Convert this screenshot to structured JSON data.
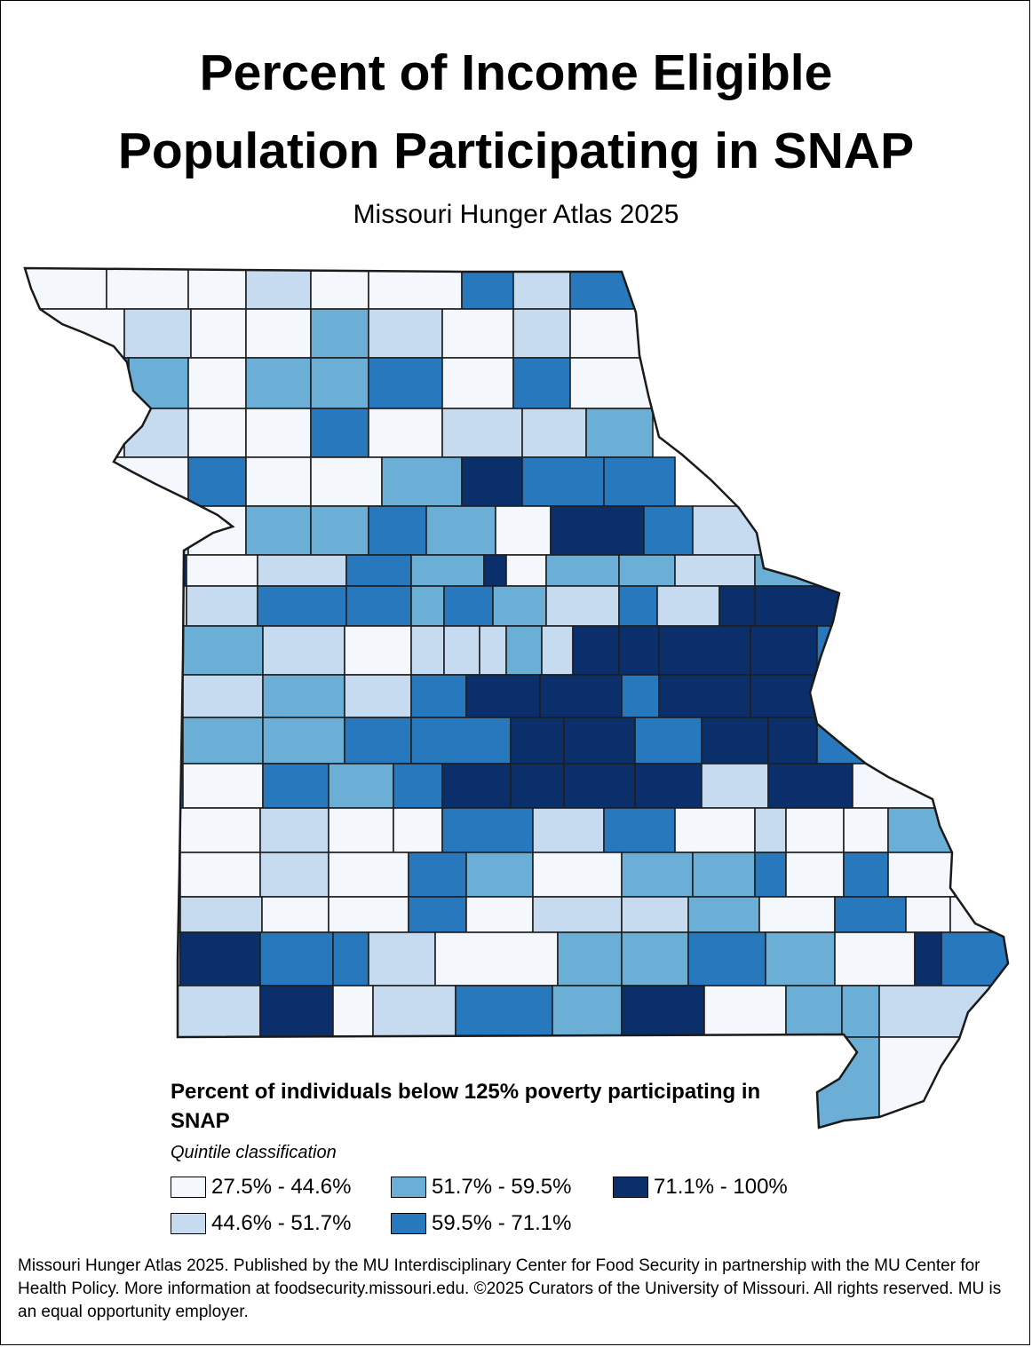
{
  "title_line1": "Percent of Income Eligible",
  "title_line2": "Population Participating in SNAP",
  "subtitle": "Missouri Hunger Atlas 2025",
  "legend": {
    "title": "Percent of individuals below 125% poverty participating in SNAP",
    "subtitle": "Quintile classification",
    "classes": [
      {
        "label": "27.5% - 44.6%",
        "color": "#f4f8fd"
      },
      {
        "label": "44.6% - 51.7%",
        "color": "#c6dbef"
      },
      {
        "label": "51.7% - 59.5%",
        "color": "#6baed6"
      },
      {
        "label": "59.5% - 71.1%",
        "color": "#2878bd"
      },
      {
        "label": "71.1% - 100%",
        "color": "#0b2f6b"
      }
    ]
  },
  "footer": "Missouri Hunger Atlas 2025. Published by the MU Interdisciplinary Center for Food Security in partnership with the MU Center for Health Policy. More information at foodsecurity.missouri.edu. ©2025 Curators of the University of Missouri. All rights reserved. MU is an equal opportunity employer.",
  "map": {
    "region": "Missouri",
    "counties": [
      {
        "class": 0
      },
      {
        "class": 0
      },
      {
        "class": 0
      },
      {
        "class": 1
      },
      {
        "class": 0
      },
      {
        "class": 0
      },
      {
        "class": 3
      },
      {
        "class": 1
      },
      {
        "class": 3
      },
      {
        "class": 0
      },
      {
        "class": 1
      },
      {
        "class": 0
      },
      {
        "class": 0
      },
      {
        "class": 2
      },
      {
        "class": 1
      },
      {
        "class": 0
      },
      {
        "class": 1
      },
      {
        "class": 0
      },
      {
        "class": 3
      },
      {
        "class": 2
      },
      {
        "class": 0
      },
      {
        "class": 2
      },
      {
        "class": 2
      },
      {
        "class": 3
      },
      {
        "class": 0
      },
      {
        "class": 3
      },
      {
        "class": 0
      },
      {
        "class": 0
      },
      {
        "class": 1
      },
      {
        "class": 0
      },
      {
        "class": 0
      },
      {
        "class": 3
      },
      {
        "class": 0
      },
      {
        "class": 1
      },
      {
        "class": 1
      },
      {
        "class": 2
      },
      {
        "class": 0
      },
      {
        "class": 3
      },
      {
        "class": 0
      },
      {
        "class": 0
      },
      {
        "class": 2
      },
      {
        "class": 4
      },
      {
        "class": 3
      },
      {
        "class": 3
      },
      {
        "class": 1
      },
      {
        "class": 0
      },
      {
        "class": 2
      },
      {
        "class": 2
      },
      {
        "class": 3
      },
      {
        "class": 2
      },
      {
        "class": 0
      },
      {
        "class": 4
      },
      {
        "class": 3
      },
      {
        "class": 1
      },
      {
        "class": 4
      },
      {
        "class": 0
      },
      {
        "class": 1
      },
      {
        "class": 3
      },
      {
        "class": 2
      },
      {
        "class": 4
      },
      {
        "class": 0
      },
      {
        "class": 2
      },
      {
        "class": 2
      },
      {
        "class": 1
      },
      {
        "class": 2
      },
      {
        "class": 0
      },
      {
        "class": 1
      },
      {
        "class": 3
      },
      {
        "class": 3
      },
      {
        "class": 2
      },
      {
        "class": 3
      },
      {
        "class": 2
      },
      {
        "class": 1
      },
      {
        "class": 3
      },
      {
        "class": 1
      },
      {
        "class": 4
      },
      {
        "class": 4
      },
      {
        "class": 4
      },
      {
        "class": 2
      },
      {
        "class": 1
      },
      {
        "class": 0
      },
      {
        "class": 1
      },
      {
        "class": 1
      },
      {
        "class": 1
      },
      {
        "class": 2
      },
      {
        "class": 1
      },
      {
        "class": 4
      },
      {
        "class": 4
      },
      {
        "class": 4
      },
      {
        "class": 4
      },
      {
        "class": 3
      },
      {
        "class": 1
      },
      {
        "class": 1
      },
      {
        "class": 2
      },
      {
        "class": 1
      },
      {
        "class": 3
      },
      {
        "class": 4
      },
      {
        "class": 4
      },
      {
        "class": 3
      },
      {
        "class": 4
      },
      {
        "class": 4
      },
      {
        "class": 2
      },
      {
        "class": 2
      },
      {
        "class": 2
      },
      {
        "class": 3
      },
      {
        "class": 3
      },
      {
        "class": 4
      },
      {
        "class": 4
      },
      {
        "class": 3
      },
      {
        "class": 4
      },
      {
        "class": 4
      },
      {
        "class": 3
      },
      {
        "class": 3
      },
      {
        "class": 0
      },
      {
        "class": 3
      },
      {
        "class": 2
      },
      {
        "class": 3
      },
      {
        "class": 4
      },
      {
        "class": 4
      },
      {
        "class": 4
      },
      {
        "class": 4
      },
      {
        "class": 1
      },
      {
        "class": 4
      }
    ]
  }
}
